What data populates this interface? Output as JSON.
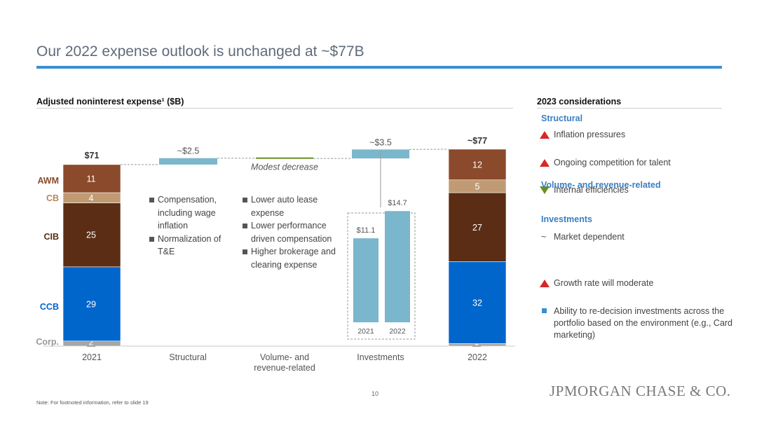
{
  "title": "Our 2022 expense outlook is unchanged at ~$77B",
  "chart_header": "Adjusted noninterest expense¹ ($B)",
  "side_header": "2023 considerations",
  "footnote": "Note: For footnoted information, refer to slide 19",
  "page_number": "10",
  "logo_text": "JPMORGAN CHASE & CO.",
  "colors": {
    "title_rule": "#3a8fd0",
    "awm": "#8b4a2b",
    "cb": "#c09a73",
    "cib": "#5a2d14",
    "ccb": "#0066cc",
    "corp": "#a6a6a6",
    "step": "#7ab6cc",
    "volume_line": "#6b8e23",
    "increase": "#d62828",
    "decrease": "#6b8e23",
    "investment_marker": "#3a8fd0"
  },
  "chart_data": {
    "type": "bar",
    "subtype": "waterfall",
    "title": "Adjusted noninterest expense¹ ($B)",
    "categories": [
      "2021",
      "Structural",
      "Volume- and revenue-related",
      "Investments",
      "2022"
    ],
    "start": {
      "category": "2021",
      "total_label": "$71",
      "total": 71,
      "segments": [
        {
          "name": "Corp.",
          "value": 2,
          "label": "2"
        },
        {
          "name": "CCB",
          "value": 29,
          "label": "29"
        },
        {
          "name": "CIB",
          "value": 25,
          "label": "25"
        },
        {
          "name": "CB",
          "value": 4,
          "label": "4"
        },
        {
          "name": "AWM",
          "value": 11,
          "label": "11"
        }
      ]
    },
    "steps": [
      {
        "category": "Structural",
        "value": 2.5,
        "label": "~$2.5"
      },
      {
        "category": "Volume- and revenue-related",
        "value": -0.1,
        "label": "Modest decrease"
      },
      {
        "category": "Investments",
        "value": 3.5,
        "label": "~$3.5"
      }
    ],
    "end": {
      "category": "2022",
      "total_label": "~$77",
      "total": 77,
      "segments": [
        {
          "name": "Corp.",
          "value": 1,
          "label": "1"
        },
        {
          "name": "CCB",
          "value": 32,
          "label": "32"
        },
        {
          "name": "CIB",
          "value": 27,
          "label": "27"
        },
        {
          "name": "CB",
          "value": 5,
          "label": "5"
        },
        {
          "name": "AWM",
          "value": 12,
          "label": "12"
        }
      ]
    },
    "segment_labels": [
      "AWM",
      "CB",
      "CIB",
      "CCB",
      "Corp."
    ],
    "inset": {
      "type": "bar",
      "categories": [
        "2021",
        "2022"
      ],
      "values": [
        11.1,
        14.7
      ],
      "labels": [
        "$11.1",
        "$14.7"
      ]
    },
    "annotations": {
      "structural": [
        "Compensation, including wage inflation",
        "Normalization of T&E"
      ],
      "volume": [
        "Lower auto lease expense",
        "Lower performance driven compensation",
        "Higher brokerage and clearing expense"
      ]
    },
    "grid": false,
    "legend": "none"
  },
  "considerations": [
    {
      "section": "Structural",
      "items": [
        {
          "marker": "up",
          "text": "Inflation pressures"
        },
        {
          "marker": "up",
          "text": "Ongoing competition for talent"
        },
        {
          "marker": "down",
          "text": "Internal efficiencies"
        }
      ]
    },
    {
      "section": "Volume- and revenue-related",
      "items": [
        {
          "marker": "tilde",
          "text": "Market dependent"
        }
      ]
    },
    {
      "section": "Investments",
      "items": [
        {
          "marker": "up",
          "text": "Growth rate will moderate"
        },
        {
          "marker": "square",
          "text": "Ability to re-decision investments across the portfolio based on the environment (e.g., Card marketing)"
        }
      ]
    }
  ]
}
